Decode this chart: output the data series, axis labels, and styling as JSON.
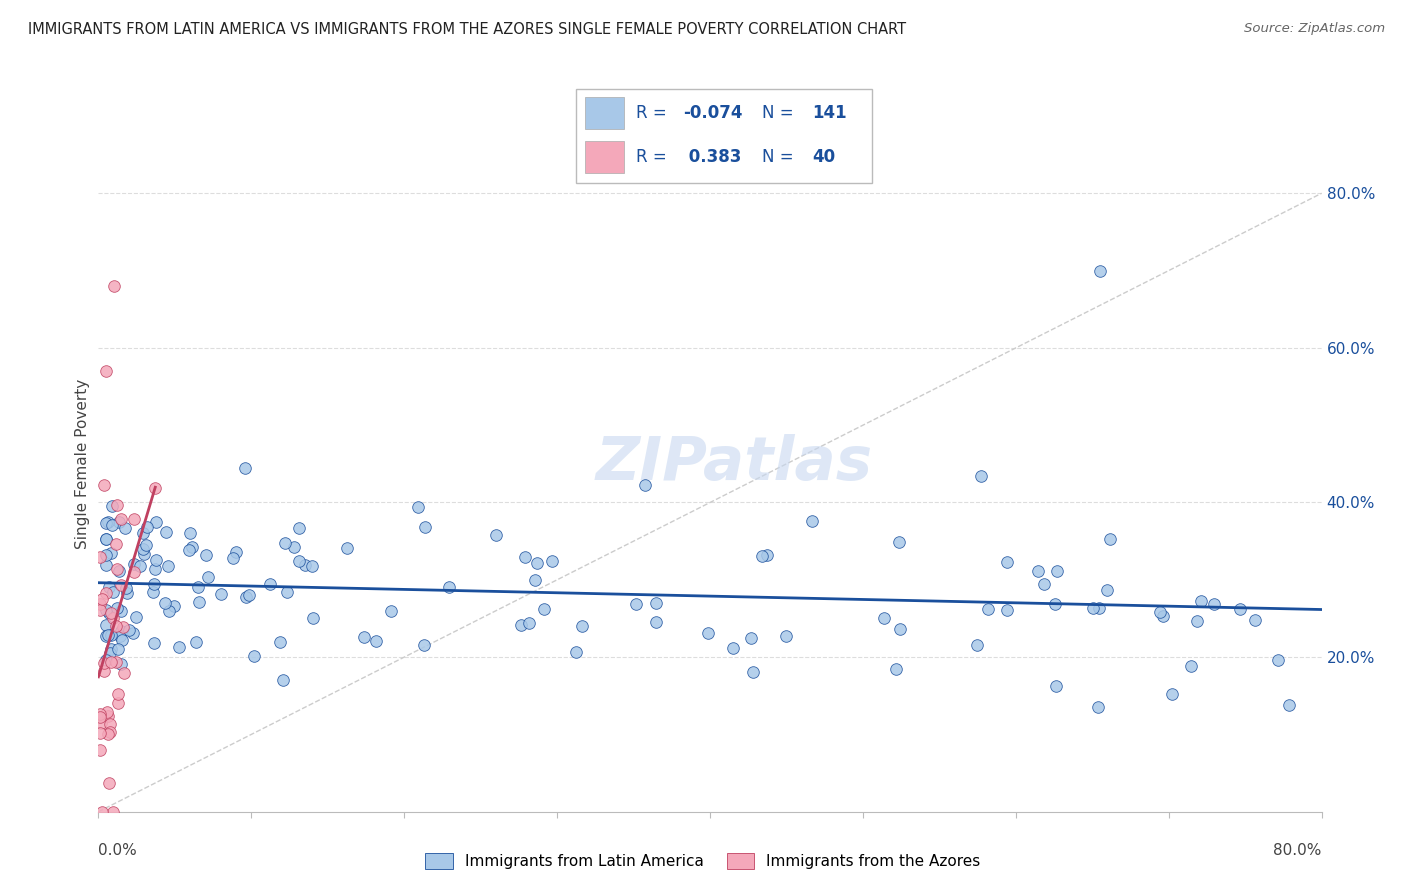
{
  "title": "IMMIGRANTS FROM LATIN AMERICA VS IMMIGRANTS FROM THE AZORES SINGLE FEMALE POVERTY CORRELATION CHART",
  "source": "Source: ZipAtlas.com",
  "ylabel": "Single Female Poverty",
  "legend_label_blue": "Immigrants from Latin America",
  "legend_label_pink": "Immigrants from the Azores",
  "watermark": "ZIPatlas",
  "blue_color": "#A8C8E8",
  "pink_color": "#F4A8BA",
  "line_blue": "#1A4F9C",
  "line_pink": "#C04060",
  "diag_color": "#CCCCCC",
  "grid_color": "#DDDDDD",
  "right_tick_color": "#1A4F9C",
  "ytick_vals": [
    0.2,
    0.4,
    0.6,
    0.8
  ],
  "xlim": [
    0.0,
    0.8
  ],
  "ylim": [
    0.0,
    0.9
  ]
}
